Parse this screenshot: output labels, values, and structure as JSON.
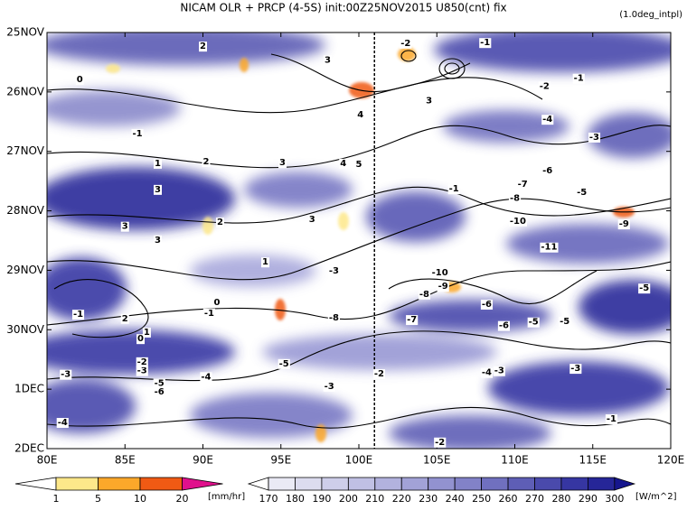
{
  "chart_data": {
    "type": "hovmoller",
    "title": "NICAM  OLR + PRCP (4-5S) init:00Z25NOV2015 U850(cnt) fix",
    "subtitle": "(1.0deg_intpl)",
    "xlim": [
      80,
      120
    ],
    "xticks": [
      {
        "value": 80,
        "label": "80E"
      },
      {
        "value": 85,
        "label": "85E"
      },
      {
        "value": 90,
        "label": "90E"
      },
      {
        "value": 95,
        "label": "95E"
      },
      {
        "value": 100,
        "label": "100E"
      },
      {
        "value": 105,
        "label": "105E"
      },
      {
        "value": 110,
        "label": "110E"
      },
      {
        "value": 115,
        "label": "115E"
      },
      {
        "value": 120,
        "label": "120E"
      }
    ],
    "ylim": [
      0,
      7
    ],
    "yticks": [
      {
        "value": 0,
        "label": "25NOV"
      },
      {
        "value": 1,
        "label": "26NOV"
      },
      {
        "value": 2,
        "label": "27NOV"
      },
      {
        "value": 3,
        "label": "28NOV"
      },
      {
        "value": 4,
        "label": "29NOV"
      },
      {
        "value": 5,
        "label": "30NOV"
      },
      {
        "value": 6,
        "label": "1DEC"
      },
      {
        "value": 7,
        "label": "2DEC"
      }
    ],
    "reference_x": 101,
    "contour_labels": [
      {
        "value": -1,
        "x": 108.1,
        "y": 0.17
      },
      {
        "value": 2,
        "x": 90.0,
        "y": 0.23
      },
      {
        "value": 3,
        "x": 98.0,
        "y": 0.46
      },
      {
        "value": -2,
        "x": 103.0,
        "y": 0.18
      },
      {
        "value": 0,
        "x": 82.1,
        "y": 0.79
      },
      {
        "value": -1,
        "x": 114.1,
        "y": 0.77
      },
      {
        "value": -2,
        "x": 111.9,
        "y": 0.9
      },
      {
        "value": 3,
        "x": 104.5,
        "y": 1.15
      },
      {
        "value": -1,
        "x": 85.8,
        "y": 1.7
      },
      {
        "value": 4,
        "x": 100.1,
        "y": 1.38
      },
      {
        "value": -4,
        "x": 112.1,
        "y": 1.46
      },
      {
        "value": -3,
        "x": 115.1,
        "y": 1.76
      },
      {
        "value": 1,
        "x": 87.1,
        "y": 2.2
      },
      {
        "value": 2,
        "x": 90.2,
        "y": 2.17
      },
      {
        "value": 3,
        "x": 95.1,
        "y": 2.19
      },
      {
        "value": 4,
        "x": 99.0,
        "y": 2.2
      },
      {
        "value": 5,
        "x": 100.0,
        "y": 2.22
      },
      {
        "value": -6,
        "x": 112.1,
        "y": 2.32
      },
      {
        "value": -7,
        "x": 110.5,
        "y": 2.55
      },
      {
        "value": -5,
        "x": 114.3,
        "y": 2.69
      },
      {
        "value": -8,
        "x": 110.0,
        "y": 2.79
      },
      {
        "value": 3,
        "x": 87.1,
        "y": 2.64
      },
      {
        "value": -1,
        "x": 106.1,
        "y": 2.63
      },
      {
        "value": 3,
        "x": 85.0,
        "y": 3.26
      },
      {
        "value": 2,
        "x": 91.1,
        "y": 3.19
      },
      {
        "value": 3,
        "x": 97.0,
        "y": 3.14
      },
      {
        "value": -10,
        "x": 110.2,
        "y": 3.17
      },
      {
        "value": -9,
        "x": 117.0,
        "y": 3.22
      },
      {
        "value": 3,
        "x": 87.1,
        "y": 3.49
      },
      {
        "value": -11,
        "x": 112.2,
        "y": 3.61
      },
      {
        "value": 1,
        "x": 94.0,
        "y": 3.86
      },
      {
        "value": -3,
        "x": 98.4,
        "y": 4.01
      },
      {
        "value": -10,
        "x": 105.2,
        "y": 4.04
      },
      {
        "value": -9,
        "x": 105.4,
        "y": 4.27
      },
      {
        "value": -8,
        "x": 104.2,
        "y": 4.4
      },
      {
        "value": -5,
        "x": 118.3,
        "y": 4.3
      },
      {
        "value": -1,
        "x": 82.0,
        "y": 4.74
      },
      {
        "value": 2,
        "x": 85.0,
        "y": 4.81
      },
      {
        "value": 0,
        "x": 90.9,
        "y": 4.54
      },
      {
        "value": -1,
        "x": 90.4,
        "y": 4.72
      },
      {
        "value": -6,
        "x": 108.2,
        "y": 4.57
      },
      {
        "value": -8,
        "x": 98.4,
        "y": 4.8
      },
      {
        "value": -7,
        "x": 103.4,
        "y": 4.83
      },
      {
        "value": -6,
        "x": 109.3,
        "y": 4.93
      },
      {
        "value": -5,
        "x": 111.2,
        "y": 4.87
      },
      {
        "value": -5,
        "x": 113.2,
        "y": 4.86
      },
      {
        "value": 1,
        "x": 86.4,
        "y": 5.04
      },
      {
        "value": 0,
        "x": 86.0,
        "y": 5.15
      },
      {
        "value": -5,
        "x": 95.2,
        "y": 5.57
      },
      {
        "value": -3,
        "x": 81.2,
        "y": 5.75
      },
      {
        "value": -3,
        "x": 86.1,
        "y": 5.69
      },
      {
        "value": -2,
        "x": 86.1,
        "y": 5.54
      },
      {
        "value": -4,
        "x": 90.2,
        "y": 5.79
      },
      {
        "value": -5,
        "x": 87.2,
        "y": 5.9
      },
      {
        "value": -6,
        "x": 87.2,
        "y": 6.04
      },
      {
        "value": -3,
        "x": 113.9,
        "y": 5.65
      },
      {
        "value": -4,
        "x": 108.2,
        "y": 5.72
      },
      {
        "value": -3,
        "x": 109.0,
        "y": 5.69
      },
      {
        "value": -2,
        "x": 101.3,
        "y": 5.74
      },
      {
        "value": -3,
        "x": 98.1,
        "y": 5.95
      },
      {
        "value": -4,
        "x": 81.0,
        "y": 6.56
      },
      {
        "value": -1,
        "x": 116.2,
        "y": 6.5
      },
      {
        "value": -2,
        "x": 105.2,
        "y": 6.89
      }
    ],
    "colorbars": [
      {
        "ticks": [
          1,
          5,
          10,
          20
        ],
        "unit": "[mm/hr]",
        "colors": [
          "#ffffff",
          "#fde88a",
          "#fca82a",
          "#f05a14",
          "#e0108c"
        ]
      },
      {
        "ticks": [
          170,
          180,
          190,
          200,
          210,
          220,
          230,
          240,
          250,
          260,
          270,
          280,
          290,
          300
        ],
        "unit": "[W/m^2]",
        "colors": [
          "#ffffff",
          "#eaeaf5",
          "#dcdcef",
          "#ceceea",
          "#c0c0e4",
          "#b2b2de",
          "#a2a2d7",
          "#9292d0",
          "#8282c8",
          "#7070bf",
          "#5e5eb6",
          "#4a4aac",
          "#3636a2",
          "#262698",
          "#16168e"
        ]
      }
    ]
  }
}
